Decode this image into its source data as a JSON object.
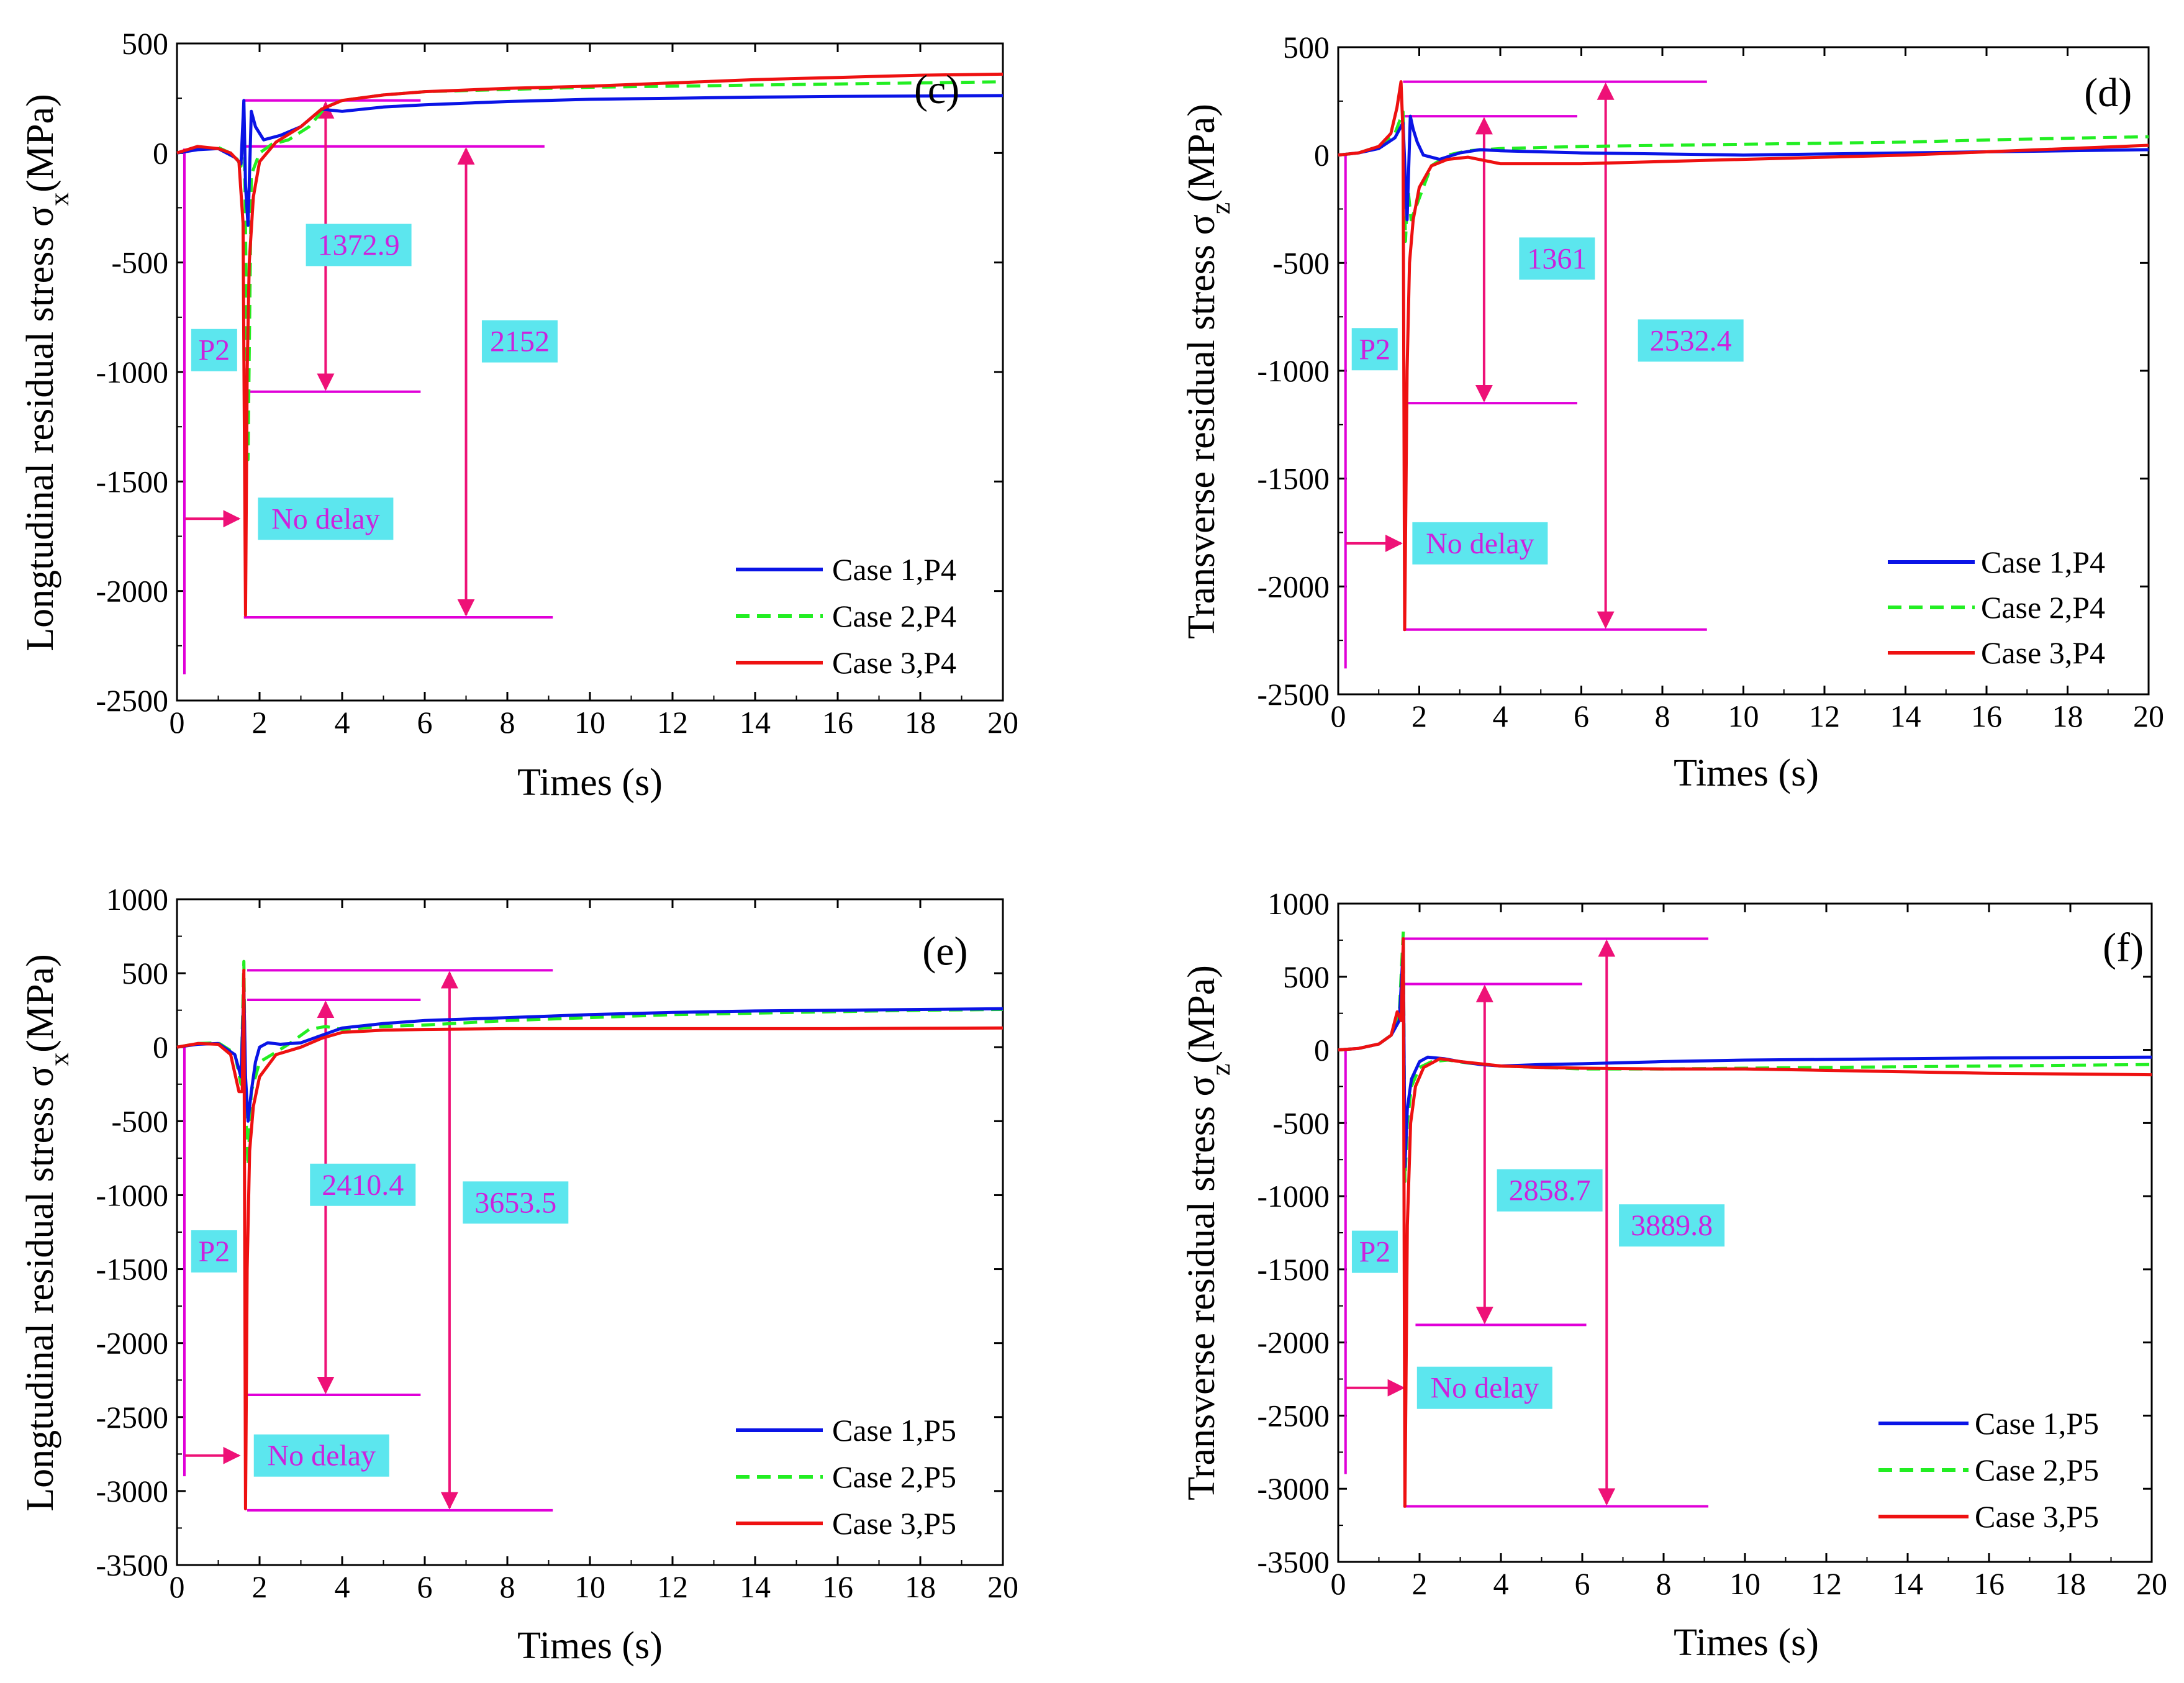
{
  "colors": {
    "case1": "#0a14e6",
    "case2": "#22ee22",
    "case3": "#ee1111",
    "annotation_line": "#e000d8",
    "annotation_arrow": "#ee1177",
    "label_box": "#5ce6ee",
    "label_text": "#cc22dd"
  },
  "chart_data": [
    {
      "type": "line",
      "panel": "(c)",
      "xlabel": "Times (s)",
      "ylabel": "Longtudinal residual stress σx(MPa)",
      "ylabel_main": "Longtudinal residual stress σ",
      "ylabel_sub": "x",
      "ylabel_unit": "(MPa)",
      "xlim": [
        0,
        20
      ],
      "ylim": [
        -2500,
        500
      ],
      "xticks": [
        0,
        2,
        4,
        6,
        8,
        10,
        12,
        14,
        16,
        18,
        20
      ],
      "yticks": [
        500,
        0,
        -500,
        -1000,
        -1500,
        -2000,
        -2500
      ],
      "legend": [
        "Case 1,P4",
        "Case 2,P4",
        "Case 3,P4"
      ],
      "series": [
        {
          "name": "Case 1,P4",
          "style": "solid",
          "x": [
            0,
            0.5,
            1.0,
            1.4,
            1.55,
            1.62,
            1.66,
            1.72,
            1.8,
            1.9,
            2.1,
            2.5,
            3.0,
            3.5,
            4.0,
            5,
            6,
            8,
            10,
            12,
            14,
            16,
            18,
            20
          ],
          "y": [
            0,
            15,
            20,
            -20,
            -50,
            240,
            -150,
            -330,
            190,
            120,
            60,
            80,
            120,
            200,
            190,
            210,
            220,
            235,
            245,
            250,
            255,
            258,
            260,
            262
          ]
        },
        {
          "name": "Case 2,P4",
          "style": "dashed",
          "x": [
            0,
            0.5,
            1.0,
            1.4,
            1.55,
            1.62,
            1.66,
            1.72,
            1.8,
            2.0,
            2.3,
            2.7,
            3.2,
            3.6,
            4.0,
            5,
            6,
            8,
            10,
            12,
            14,
            16,
            18,
            20
          ],
          "y": [
            0,
            20,
            25,
            -10,
            -60,
            180,
            -350,
            -1400,
            -100,
            0,
            40,
            60,
            120,
            210,
            240,
            265,
            280,
            290,
            300,
            305,
            310,
            315,
            320,
            325
          ]
        },
        {
          "name": "Case 3,P4",
          "style": "solid",
          "x": [
            0,
            0.5,
            1.0,
            1.3,
            1.5,
            1.6,
            1.66,
            1.7,
            1.75,
            1.85,
            2.0,
            2.4,
            3.0,
            3.5,
            4.0,
            5,
            6,
            8,
            10,
            12,
            14,
            16,
            18,
            20
          ],
          "y": [
            0,
            30,
            20,
            0,
            -40,
            -320,
            -2110,
            -1000,
            -500,
            -200,
            -40,
            50,
            120,
            200,
            240,
            265,
            280,
            295,
            305,
            320,
            335,
            345,
            355,
            360
          ]
        }
      ],
      "annotations": {
        "p2": "P2",
        "no_delay": "No delay",
        "inner_range": "1372.9",
        "outer_range": "2152"
      }
    },
    {
      "type": "line",
      "panel": "(d)",
      "xlabel": "Times (s)",
      "ylabel": "Transverse residual stress σz(MPa)",
      "ylabel_main": "Transverse residual stress σ",
      "ylabel_sub": "z",
      "ylabel_unit": "(MPa)",
      "xlim": [
        0,
        20
      ],
      "ylim": [
        -2500,
        500
      ],
      "xticks": [
        0,
        2,
        4,
        6,
        8,
        10,
        12,
        14,
        16,
        18,
        20
      ],
      "yticks": [
        500,
        0,
        -500,
        -1000,
        -1500,
        -2000,
        -2500
      ],
      "legend": [
        "Case 1,P4",
        "Case 2,P4",
        "Case 3,P4"
      ],
      "series": [
        {
          "name": "Case 1,P4",
          "style": "solid",
          "x": [
            0,
            0.5,
            1.0,
            1.4,
            1.6,
            1.7,
            1.78,
            1.85,
            1.95,
            2.1,
            2.5,
            3.0,
            3.5,
            4.0,
            5,
            6,
            8,
            10,
            12,
            14,
            16,
            18,
            20
          ],
          "y": [
            0,
            10,
            30,
            80,
            150,
            -300,
            180,
            120,
            60,
            0,
            -20,
            10,
            25,
            20,
            15,
            10,
            5,
            0,
            5,
            10,
            15,
            20,
            25
          ]
        },
        {
          "name": "Case 2,P4",
          "style": "dashed",
          "x": [
            0,
            0.5,
            1.0,
            1.4,
            1.6,
            1.66,
            1.72,
            1.8,
            2.0,
            2.3,
            2.7,
            3.2,
            4.0,
            5,
            6,
            8,
            10,
            12,
            14,
            16,
            18,
            20
          ],
          "y": [
            0,
            10,
            40,
            100,
            200,
            -400,
            -150,
            -300,
            -200,
            -50,
            0,
            20,
            30,
            35,
            40,
            45,
            50,
            55,
            60,
            70,
            78,
            85
          ]
        },
        {
          "name": "Case 3,P4",
          "style": "solid",
          "x": [
            0,
            0.5,
            1.0,
            1.3,
            1.45,
            1.55,
            1.6,
            1.64,
            1.7,
            1.76,
            1.85,
            2.0,
            2.3,
            2.7,
            3.2,
            4.0,
            5,
            6,
            8,
            10,
            12,
            14,
            16,
            18,
            20
          ],
          "y": [
            0,
            10,
            40,
            100,
            220,
            340,
            100,
            -2200,
            -1000,
            -500,
            -300,
            -150,
            -50,
            -20,
            -10,
            -40,
            -40,
            -40,
            -30,
            -20,
            -10,
            0,
            15,
            30,
            45
          ]
        }
      ],
      "annotations": {
        "p2": "P2",
        "no_delay": "No delay",
        "inner_range": "1361",
        "outer_range": "2532.4"
      }
    },
    {
      "type": "line",
      "panel": "(e)",
      "xlabel": "Times (s)",
      "ylabel": "Longtudinal residual stress σx(MPa)",
      "ylabel_main": "Longtudinal residual stress σ",
      "ylabel_sub": "x",
      "ylabel_unit": "(MPa)",
      "xlim": [
        0,
        20
      ],
      "ylim": [
        -3500,
        1000
      ],
      "xticks": [
        0,
        2,
        4,
        6,
        8,
        10,
        12,
        14,
        16,
        18,
        20
      ],
      "yticks": [
        1000,
        500,
        0,
        -500,
        -1000,
        -1500,
        -2000,
        -2500,
        -3000,
        -3500
      ],
      "legend": [
        "Case 1,P5",
        "Case 2,P5",
        "Case 3,P5"
      ],
      "series": [
        {
          "name": "Case 1,P5",
          "style": "solid",
          "x": [
            0,
            0.5,
            1.0,
            1.4,
            1.55,
            1.62,
            1.66,
            1.72,
            1.8,
            1.9,
            2.0,
            2.2,
            2.5,
            3.0,
            3.5,
            4.0,
            5,
            6,
            8,
            10,
            12,
            14,
            16,
            18,
            20
          ],
          "y": [
            0,
            20,
            25,
            -50,
            -200,
            400,
            -200,
            -500,
            -300,
            -100,
            0,
            30,
            20,
            30,
            80,
            130,
            160,
            180,
            200,
            220,
            235,
            245,
            250,
            255,
            260
          ]
        },
        {
          "name": "Case 2,P5",
          "style": "dashed",
          "x": [
            0,
            0.5,
            1.0,
            1.4,
            1.55,
            1.62,
            1.66,
            1.72,
            1.8,
            2.0,
            2.3,
            2.7,
            3.2,
            3.6,
            4.0,
            5,
            6,
            8,
            10,
            12,
            14,
            16,
            18,
            20
          ],
          "y": [
            0,
            25,
            30,
            -40,
            -250,
            580,
            -400,
            -800,
            -300,
            -100,
            -50,
            20,
            120,
            140,
            120,
            140,
            150,
            180,
            200,
            220,
            230,
            240,
            250,
            255
          ]
        },
        {
          "name": "Case 3,P5",
          "style": "solid",
          "x": [
            0,
            0.5,
            1.0,
            1.3,
            1.5,
            1.58,
            1.62,
            1.66,
            1.7,
            1.76,
            1.85,
            2.0,
            2.4,
            3.0,
            3.5,
            4.0,
            5,
            6,
            8,
            10,
            12,
            14,
            16,
            18,
            20
          ],
          "y": [
            0,
            25,
            20,
            -50,
            -300,
            -300,
            520,
            -3120,
            -1500,
            -700,
            -400,
            -200,
            -50,
            0,
            60,
            100,
            115,
            120,
            125,
            125,
            125,
            125,
            125,
            128,
            130
          ]
        }
      ],
      "annotations": {
        "p2": "P2",
        "no_delay": "No delay",
        "inner_range": "2410.4",
        "outer_range": "3653.5"
      }
    },
    {
      "type": "line",
      "panel": "(f)",
      "xlabel": "Times (s)",
      "ylabel": "Transverse residual stress σz(MPa)",
      "ylabel_main": "Transverse residual stress σ",
      "ylabel_sub": "z",
      "ylabel_unit": "(MPa)",
      "xlim": [
        0,
        20
      ],
      "ylim": [
        -3500,
        1000
      ],
      "xticks": [
        0,
        2,
        4,
        6,
        8,
        10,
        12,
        14,
        16,
        18,
        20
      ],
      "yticks": [
        1000,
        500,
        0,
        -500,
        -1000,
        -1500,
        -2000,
        -2500,
        -3000,
        -3500
      ],
      "legend": [
        "Case 1,P5",
        "Case 2,P5",
        "Case 3,P5"
      ],
      "series": [
        {
          "name": "Case 1,P5",
          "style": "solid",
          "x": [
            0,
            0.5,
            1.0,
            1.3,
            1.5,
            1.6,
            1.64,
            1.7,
            1.8,
            2.0,
            2.2,
            2.6,
            3.0,
            3.5,
            4.0,
            5,
            6,
            8,
            10,
            12,
            14,
            16,
            18,
            20
          ],
          "y": [
            0,
            10,
            40,
            100,
            200,
            700,
            -800,
            -400,
            -200,
            -80,
            -50,
            -60,
            -80,
            -100,
            -110,
            -100,
            -95,
            -80,
            -70,
            -65,
            -60,
            -55,
            -52,
            -50
          ]
        },
        {
          "name": "Case 2,P5",
          "style": "dashed",
          "x": [
            0,
            0.5,
            1.0,
            1.3,
            1.5,
            1.6,
            1.64,
            1.7,
            1.8,
            2.0,
            2.3,
            2.7,
            3.2,
            4.0,
            5,
            6,
            8,
            10,
            12,
            14,
            16,
            18,
            20
          ],
          "y": [
            0,
            10,
            40,
            100,
            250,
            810,
            -900,
            -500,
            -250,
            -120,
            -80,
            -70,
            -90,
            -110,
            -120,
            -130,
            -130,
            -125,
            -120,
            -115,
            -110,
            -105,
            -100
          ]
        },
        {
          "name": "Case 3,P5",
          "style": "solid",
          "x": [
            0,
            0.5,
            1.0,
            1.3,
            1.45,
            1.55,
            1.6,
            1.64,
            1.7,
            1.78,
            1.9,
            2.1,
            2.5,
            3.0,
            4.0,
            5,
            6,
            8,
            10,
            12,
            14,
            16,
            18,
            20
          ],
          "y": [
            0,
            10,
            40,
            100,
            260,
            200,
            760,
            -3120,
            -1200,
            -500,
            -250,
            -120,
            -60,
            -80,
            -110,
            -120,
            -125,
            -130,
            -130,
            -140,
            -150,
            -160,
            -165,
            -170
          ]
        }
      ],
      "annotations": {
        "p2": "P2",
        "no_delay": "No delay",
        "inner_range": "2858.7",
        "outer_range": "3889.8"
      }
    }
  ]
}
